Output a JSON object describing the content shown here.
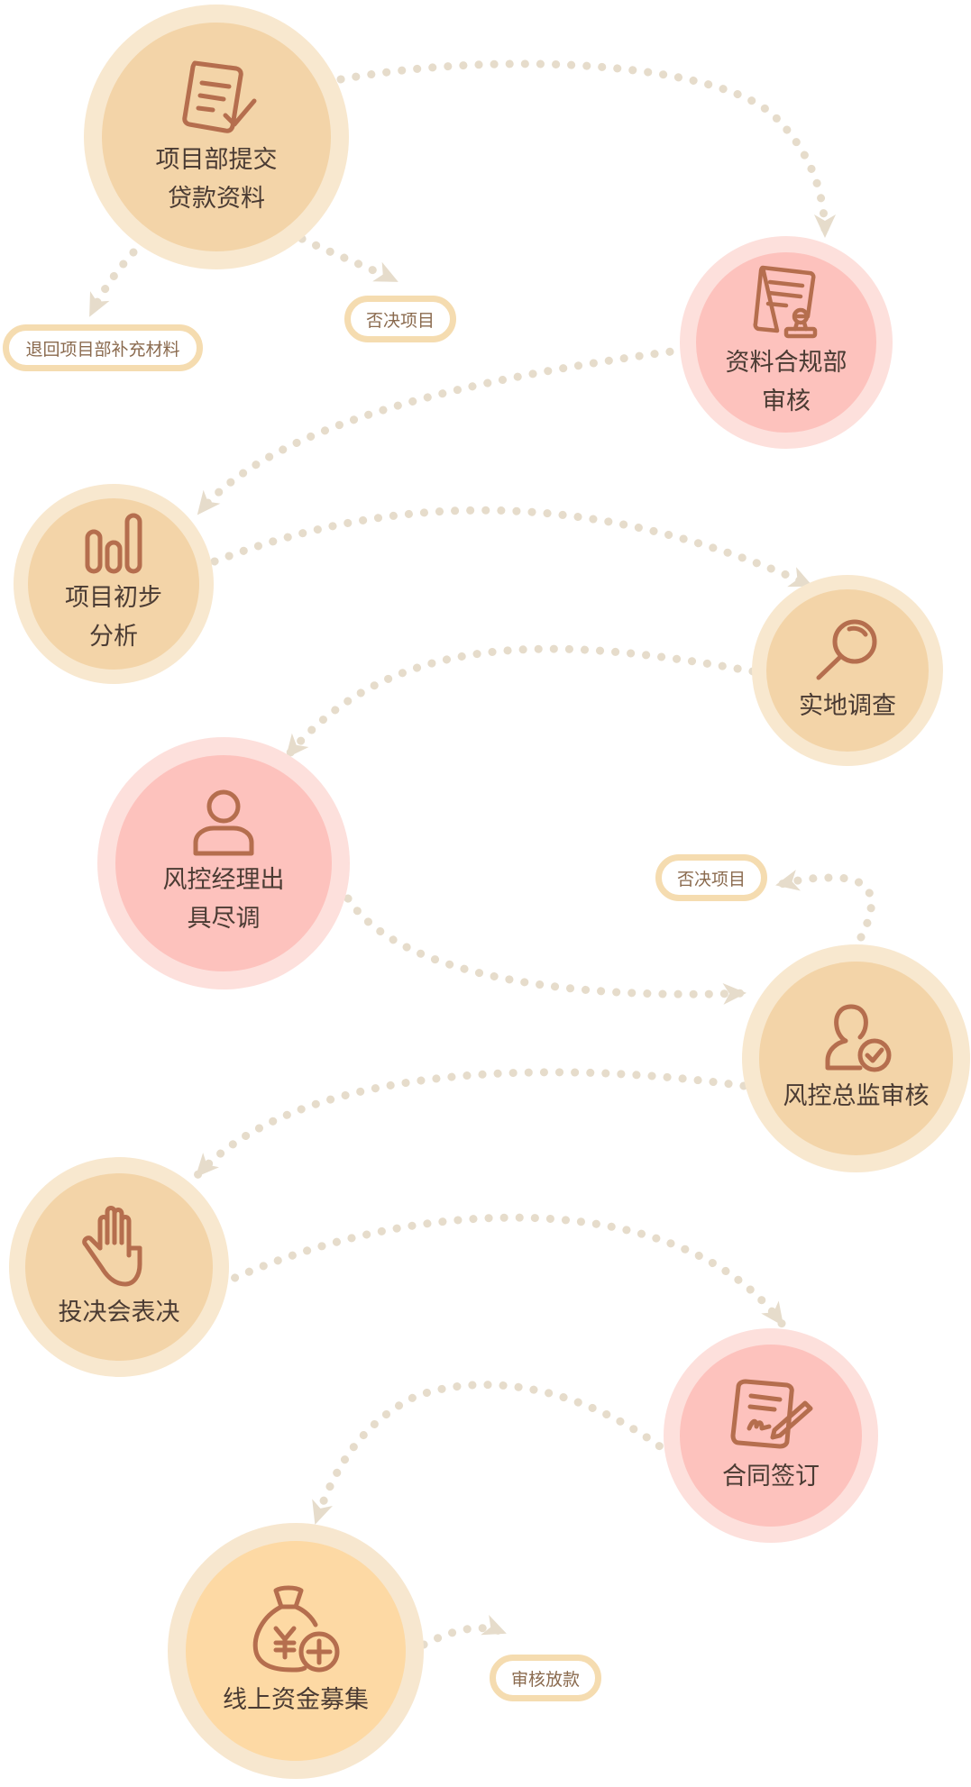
{
  "nodes": {
    "submit": {
      "line1": "项目部提交",
      "line2": "贷款资料",
      "icon": "document-edit-icon"
    },
    "compliance": {
      "line1": "资料合规部",
      "line2": "审核",
      "icon": "document-stamp-icon"
    },
    "analysis": {
      "line1": "项目初步",
      "line2": "分析",
      "icon": "bar-chart-icon"
    },
    "survey": {
      "line1": "实地调查",
      "icon": "magnifier-icon"
    },
    "manager": {
      "line1": "风控经理出",
      "line2": "具尽调",
      "icon": "user-icon"
    },
    "director": {
      "line1": "风控总监审核",
      "icon": "user-check-icon"
    },
    "committee": {
      "line1": "投决会表决",
      "icon": "hand-icon"
    },
    "contract": {
      "line1": "合同签订",
      "icon": "contract-sign-icon"
    },
    "funding": {
      "line1": "线上资金募集",
      "icon": "money-bag-add-icon"
    }
  },
  "tags": {
    "return": "退回项目部补充材料",
    "reject1": "否决项目",
    "reject2": "否决项目",
    "release": "审核放款"
  },
  "colors": {
    "tan_ring": "#f8e8cf",
    "tan_fill": "#f3d4a8",
    "pink_ring": "#fde0dc",
    "pink_fill": "#fdc2bd",
    "gold_fill": "#fdd9a4",
    "icon": "#b56e4e",
    "connector": "#e6dccb"
  }
}
